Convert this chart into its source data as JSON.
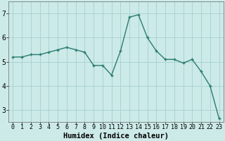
{
  "x": [
    0,
    1,
    2,
    3,
    4,
    5,
    6,
    7,
    8,
    9,
    10,
    11,
    12,
    13,
    14,
    15,
    16,
    17,
    18,
    19,
    20,
    21,
    22,
    23
  ],
  "y": [
    5.2,
    5.2,
    5.3,
    5.3,
    5.4,
    5.5,
    5.6,
    5.5,
    5.4,
    4.85,
    4.85,
    4.45,
    5.45,
    6.85,
    6.95,
    6.0,
    5.45,
    5.1,
    5.1,
    4.95,
    5.1,
    4.6,
    4.0,
    2.65
  ],
  "xlabel": "Humidex (Indice chaleur)",
  "line_color": "#2a7b6f",
  "bg_color": "#cceae8",
  "grid_color": "#aad4d0",
  "ylim": [
    2.5,
    7.5
  ],
  "xlim": [
    -0.5,
    23.5
  ],
  "yticks": [
    3,
    4,
    5,
    6,
    7
  ],
  "xticks": [
    0,
    1,
    2,
    3,
    4,
    5,
    6,
    7,
    8,
    9,
    10,
    11,
    12,
    13,
    14,
    15,
    16,
    17,
    18,
    19,
    20,
    21,
    22,
    23
  ],
  "xlabel_fontsize": 7.5,
  "ytick_fontsize": 7,
  "xtick_fontsize": 6
}
